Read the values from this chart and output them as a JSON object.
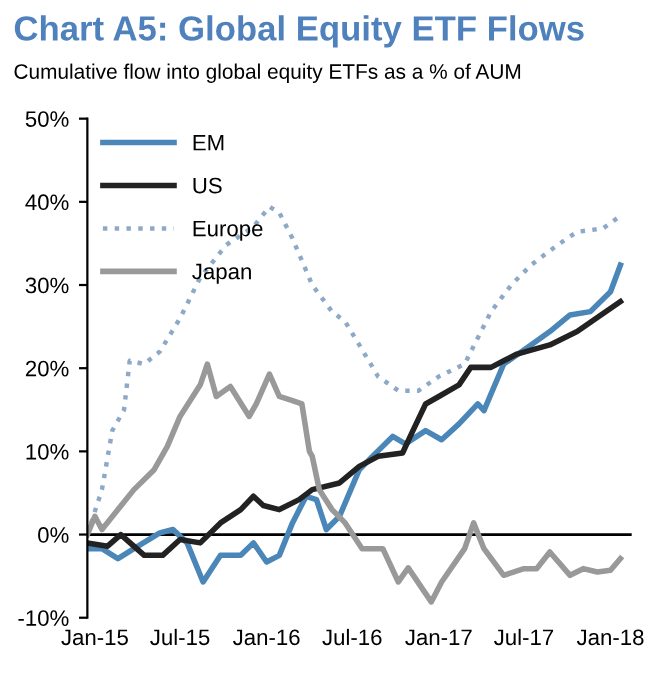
{
  "chart_data": {
    "type": "line",
    "title": "Chart A5: Global Equity ETF Flows",
    "subtitle": "Cumulative flow into global equity ETFs as a % of AUM",
    "xlim": [
      "2014-12-16",
      "2018-02-15"
    ],
    "xticks": [
      {
        "value": "2015-01",
        "label": "Jan-15"
      },
      {
        "value": "2015-07",
        "label": "Jul-15"
      },
      {
        "value": "2016-01",
        "label": "Jan-16"
      },
      {
        "value": "2016-07",
        "label": "Jul-16"
      },
      {
        "value": "2017-01",
        "label": "Jan-17"
      },
      {
        "value": "2017-07",
        "label": "Jul-17"
      },
      {
        "value": "2018-01",
        "label": "Jan-18"
      }
    ],
    "ylim": [
      -10,
      50
    ],
    "yticks": [
      {
        "value": -10,
        "label": "-10%"
      },
      {
        "value": 0,
        "label": "0%"
      },
      {
        "value": 10,
        "label": "10%"
      },
      {
        "value": 20,
        "label": "20%"
      },
      {
        "value": 30,
        "label": "30%"
      },
      {
        "value": 40,
        "label": "40%"
      },
      {
        "value": 50,
        "label": "50%"
      }
    ],
    "grid": false,
    "legend": "top left",
    "ref_lines": [
      {
        "axis": "y",
        "value": 0,
        "color": "#000000",
        "line_style": "solid"
      }
    ],
    "series": [
      {
        "name": "EM",
        "color": "#4a86b8",
        "line_style": "solid",
        "x": [
          "2014-12-16",
          "2015-01-16",
          "2015-02-19",
          "2015-03-25",
          "2015-05-19",
          "2015-06-16",
          "2015-07-16",
          "2015-08-19",
          "2015-09-25",
          "2015-11-07",
          "2015-12-04",
          "2016-01-01",
          "2016-01-28",
          "2016-02-25",
          "2016-03-25",
          "2016-04-16",
          "2016-05-07",
          "2016-06-04",
          "2016-07-16",
          "2016-08-13",
          "2016-09-25",
          "2016-10-22",
          "2016-12-04",
          "2017-01-07",
          "2017-02-13",
          "2017-03-25",
          "2017-04-07",
          "2017-05-19",
          "2017-07-16",
          "2017-08-25",
          "2017-10-07",
          "2017-11-19",
          "2018-01-01",
          "2018-01-22"
        ],
        "values": [
          -1.7,
          -1.7,
          -2.9,
          -1.7,
          0.2,
          0.6,
          -1.0,
          -5.7,
          -2.5,
          -2.5,
          -1.0,
          -3.3,
          -2.5,
          1.4,
          4.6,
          4.2,
          0.6,
          2.2,
          7.8,
          9.4,
          11.8,
          10.9,
          12.5,
          11.4,
          13.3,
          15.7,
          14.9,
          20.5,
          22.8,
          24.4,
          26.4,
          26.8,
          29.2,
          32.4
        ]
      },
      {
        "name": "US",
        "color": "#222222",
        "line_style": "solid",
        "x": [
          "2014-12-16",
          "2015-01-28",
          "2015-02-25",
          "2015-04-16",
          "2015-05-25",
          "2015-07-01",
          "2015-08-13",
          "2015-09-25",
          "2015-11-07",
          "2015-12-04",
          "2015-12-25",
          "2016-01-28",
          "2016-03-10",
          "2016-04-07",
          "2016-06-04",
          "2016-07-16",
          "2016-08-25",
          "2016-10-16",
          "2016-11-07",
          "2016-12-04",
          "2017-01-01",
          "2017-02-13",
          "2017-03-10",
          "2017-04-22",
          "2017-05-19",
          "2017-06-16",
          "2017-08-25",
          "2017-10-22",
          "2017-12-04",
          "2018-01-22"
        ],
        "values": [
          -1.0,
          -1.4,
          0.0,
          -2.5,
          -2.5,
          -0.6,
          -1.0,
          1.4,
          3.0,
          4.6,
          3.5,
          3.0,
          4.2,
          5.4,
          6.2,
          8.2,
          9.4,
          9.8,
          12.5,
          15.7,
          16.6,
          18.0,
          20.1,
          20.1,
          20.9,
          21.7,
          22.8,
          24.4,
          26.1,
          28.0
        ]
      },
      {
        "name": "Europe",
        "color": "#8ea9c8",
        "line_style": "dotted",
        "x": [
          "2014-12-16",
          "2015-01-16",
          "2015-02-07",
          "2015-03-04",
          "2015-03-16",
          "2015-04-16",
          "2015-05-19",
          "2015-07-01",
          "2015-08-13",
          "2015-10-07",
          "2015-12-04",
          "2016-01-07",
          "2016-01-28",
          "2016-02-25",
          "2016-04-07",
          "2016-05-19",
          "2016-06-16",
          "2016-07-16",
          "2016-08-25",
          "2016-10-07",
          "2016-11-19",
          "2017-01-01",
          "2017-02-25",
          "2017-04-22",
          "2017-06-04",
          "2017-07-16",
          "2017-09-10",
          "2017-10-22",
          "2017-12-16",
          "2018-01-22"
        ],
        "values": [
          0.0,
          5.4,
          12.5,
          15.0,
          20.9,
          20.5,
          22.0,
          26.0,
          30.9,
          34.8,
          37.0,
          39.4,
          38.7,
          35.6,
          30.0,
          26.8,
          25.6,
          22.8,
          19.0,
          17.3,
          17.3,
          19.0,
          20.5,
          26.8,
          30.0,
          32.4,
          34.8,
          36.4,
          36.8,
          38.3
        ]
      },
      {
        "name": "Japan",
        "color": "#999999",
        "line_style": "solid",
        "x": [
          "2014-12-16",
          "2015-01-01",
          "2015-01-16",
          "2015-02-19",
          "2015-03-25",
          "2015-05-07",
          "2015-06-04",
          "2015-07-01",
          "2015-08-13",
          "2015-08-28",
          "2015-09-16",
          "2015-10-16",
          "2015-11-25",
          "2015-12-10",
          "2016-01-07",
          "2016-01-28",
          "2016-02-25",
          "2016-03-16",
          "2016-04-01",
          "2016-04-07",
          "2016-04-22",
          "2016-05-19",
          "2016-06-16",
          "2016-07-22",
          "2016-09-04",
          "2016-10-07",
          "2016-10-28",
          "2016-12-16",
          "2017-01-07",
          "2017-02-25",
          "2017-03-16",
          "2017-04-07",
          "2017-05-19",
          "2017-07-01",
          "2017-07-28",
          "2017-08-25",
          "2017-10-07",
          "2017-11-04",
          "2017-12-04",
          "2018-01-01",
          "2018-01-22"
        ],
        "values": [
          0.0,
          2.2,
          0.6,
          3.0,
          5.4,
          7.8,
          10.6,
          14.2,
          18.0,
          20.5,
          16.6,
          17.8,
          14.2,
          15.7,
          19.3,
          16.6,
          16.1,
          15.7,
          10.0,
          9.4,
          5.4,
          3.0,
          1.4,
          -1.7,
          -1.7,
          -5.7,
          -4.0,
          -8.1,
          -5.7,
          -1.7,
          1.4,
          -1.7,
          -4.9,
          -4.1,
          -4.1,
          -2.1,
          -4.9,
          -4.1,
          -4.5,
          -4.3,
          -2.9
        ]
      }
    ]
  }
}
